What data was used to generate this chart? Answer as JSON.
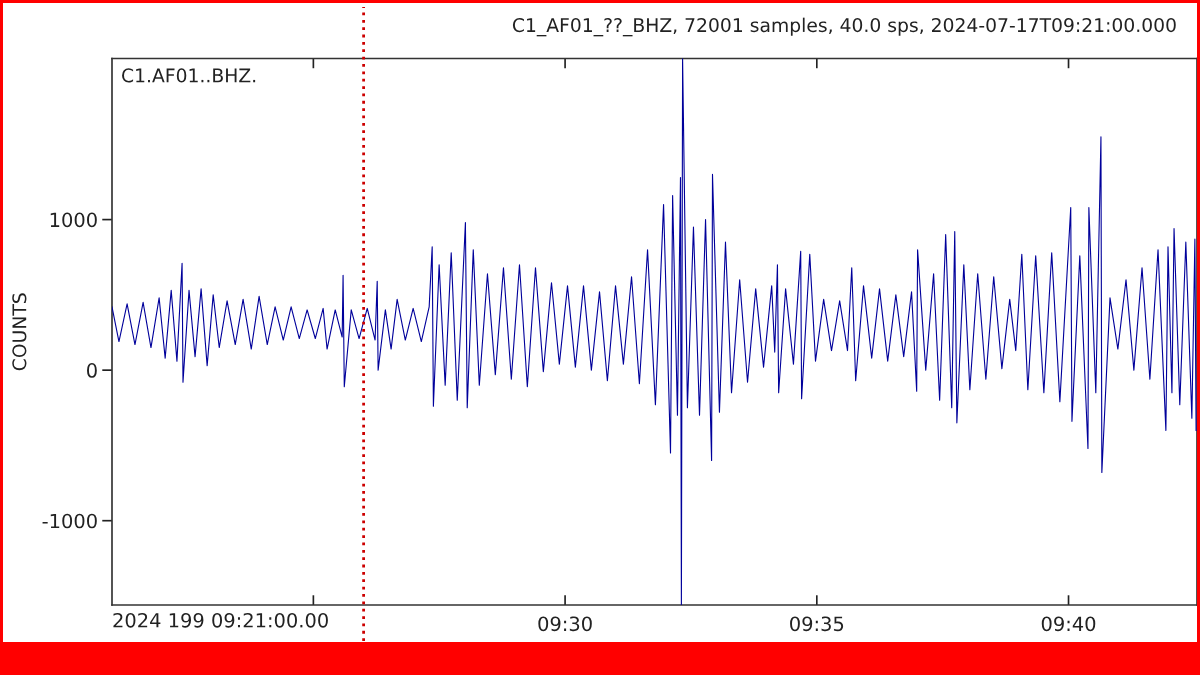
{
  "chart_data": {
    "type": "line",
    "title": "C1_AF01_??_BHZ, 72001 samples, 40.0 sps, 2024-07-17T09:21:00.000",
    "ylabel": "COUNTS",
    "annotations": [
      "C1.AF01..BHZ.",
      "2024 199 09:21:00.00"
    ],
    "x": [
      9.35,
      9.3523,
      9.355,
      9.3576,
      9.3603,
      9.3629,
      9.3656,
      9.3676,
      9.3696,
      9.3715,
      9.3732,
      9.3735,
      9.3755,
      9.3775,
      9.3795,
      9.3815,
      9.3835,
      9.3855,
      9.3881,
      9.3908,
      9.3934,
      9.3961,
      9.3987,
      9.4014,
      9.404,
      9.4067,
      9.4093,
      9.412,
      9.4146,
      9.4173,
      9.4199,
      9.4212,
      9.4239,
      9.4262,
      9.4265,
      9.4269,
      9.4292,
      9.4318,
      9.4345,
      9.4371,
      9.4378,
      9.4381,
      9.4405,
      9.4424,
      9.4444,
      9.4471,
      9.4497,
      9.4524,
      9.455,
      9.456,
      9.4564,
      9.4583,
      9.4603,
      9.4623,
      9.4643,
      9.467,
      9.4676,
      9.4696,
      9.4716,
      9.4743,
      9.4769,
      9.4796,
      9.4822,
      9.4849,
      9.4875,
      9.4902,
      9.4928,
      9.4955,
      9.4981,
      9.5008,
      9.5034,
      9.5061,
      9.5087,
      9.5114,
      9.514,
      9.5167,
      9.5193,
      9.522,
      9.5246,
      9.5273,
      9.5299,
      9.5326,
      9.5349,
      9.5356,
      9.5372,
      9.5382,
      9.5385,
      9.5389,
      9.5405,
      9.5425,
      9.5445,
      9.5465,
      9.5485,
      9.5488,
      9.5511,
      9.5531,
      9.5551,
      9.5578,
      9.5604,
      9.5631,
      9.5657,
      9.5684,
      9.5694,
      9.5703,
      9.5707,
      9.573,
      9.5756,
      9.578,
      9.5783,
      9.581,
      9.5829,
      9.5856,
      9.5882,
      9.5909,
      9.5935,
      9.5949,
      9.5962,
      9.5988,
      9.6015,
      9.6041,
      9.6068,
      9.6095,
      9.6121,
      9.6147,
      9.6164,
      9.6167,
      9.6194,
      9.622,
      9.624,
      9.626,
      9.628,
      9.629,
      9.6297,
      9.632,
      9.634,
      9.6366,
      9.6393,
      9.6419,
      9.6446,
      9.6472,
      9.6492,
      9.6512,
      9.6532,
      9.6558,
      9.6585,
      9.6611,
      9.6638,
      9.6674,
      9.6678,
      9.6704,
      9.6731,
      9.6734,
      9.6757,
      9.6774,
      9.6777,
      9.6804,
      9.683,
      9.6857,
      9.6883,
      9.691,
      9.6936,
      9.6963,
      9.6989,
      9.6996,
      9.7009,
      9.7016,
      9.7035,
      9.7055,
      9.7075,
      9.7085,
      9.7089
    ],
    "series": [
      {
        "color": "#00009b",
        "values": [
          420,
          190,
          440,
          170,
          450,
          150,
          480,
          80,
          530,
          60,
          710,
          -80,
          530,
          90,
          540,
          30,
          500,
          150,
          460,
          170,
          470,
          140,
          490,
          170,
          420,
          200,
          420,
          210,
          400,
          210,
          410,
          140,
          400,
          220,
          630,
          -110,
          400,
          210,
          410,
          200,
          590,
          0,
          400,
          140,
          470,
          200,
          410,
          190,
          420,
          820,
          -240,
          700,
          -100,
          780,
          -200,
          980,
          -250,
          800,
          -100,
          640,
          -30,
          680,
          -60,
          700,
          -110,
          680,
          -10,
          580,
          40,
          560,
          20,
          560,
          0,
          520,
          -70,
          560,
          40,
          620,
          -90,
          800,
          -230,
          1100,
          -550,
          1160,
          -300,
          1280,
          -1560,
          2070,
          -250,
          950,
          -300,
          1000,
          -600,
          1300,
          -280,
          850,
          -150,
          600,
          -80,
          540,
          20,
          560,
          120,
          700,
          -150,
          540,
          40,
          790,
          -190,
          770,
          60,
          470,
          130,
          460,
          130,
          680,
          -70,
          560,
          80,
          540,
          60,
          500,
          90,
          520,
          -140,
          800,
          0,
          640,
          -200,
          900,
          -250,
          920,
          -350,
          700,
          -130,
          640,
          -60,
          620,
          10,
          470,
          130,
          770,
          -130,
          760,
          -150,
          780,
          -210,
          1080,
          -340,
          760,
          -520,
          1080,
          -150,
          1550,
          -680,
          480,
          140,
          600,
          0,
          680,
          -60,
          800,
          -400,
          820,
          -150,
          940,
          -230,
          850,
          -320,
          870,
          -400
        ]
      }
    ],
    "xlim": [
      9.35,
      9.7092
    ],
    "xticks": [
      {
        "value": 9.416667,
        "label": null
      },
      {
        "value": 9.5,
        "label": "09:30"
      },
      {
        "value": 9.583333,
        "label": "09:35"
      },
      {
        "value": 9.666667,
        "label": "09:40"
      }
    ],
    "ylim": [
      -1560,
      2070
    ],
    "yticks": [
      -1000,
      0,
      1000
    ],
    "ref_lines": [
      {
        "axis": "x",
        "value": 9.4333,
        "color": "#cc0000",
        "line_style": "dotted"
      }
    ],
    "line_style": "solid"
  }
}
